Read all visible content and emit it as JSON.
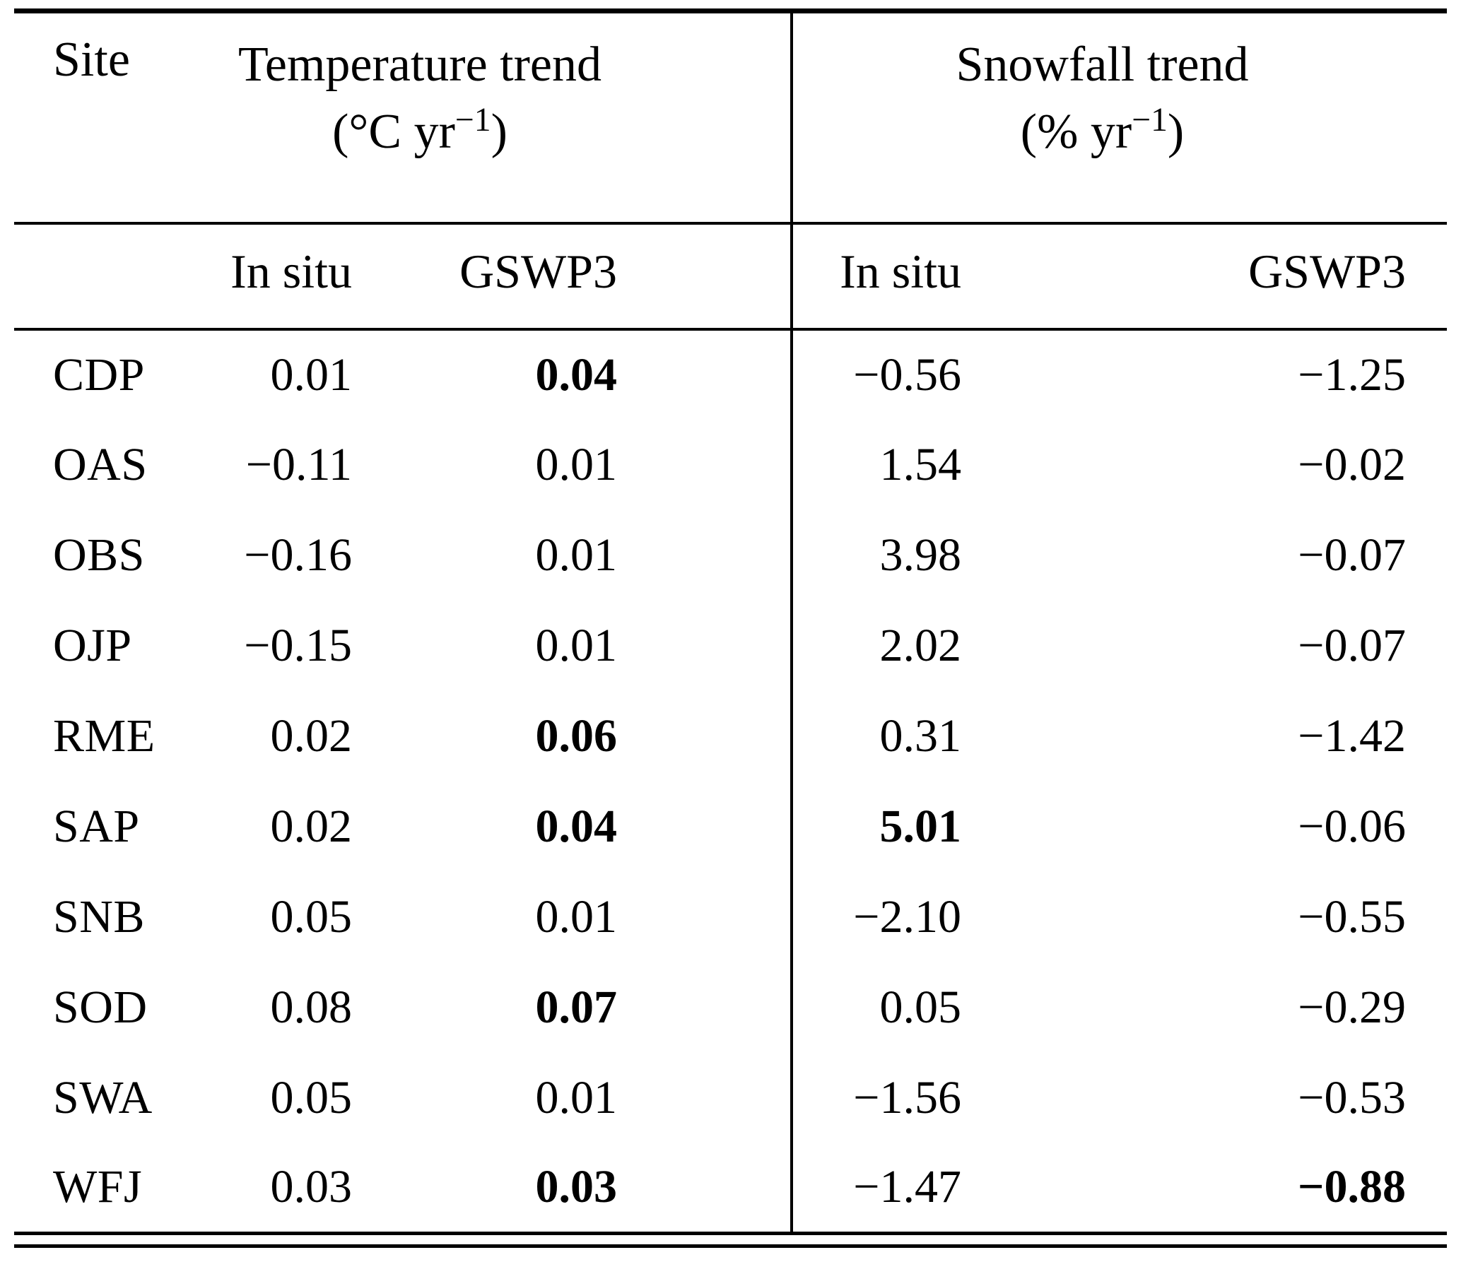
{
  "table": {
    "header": {
      "site": "Site",
      "temp_title": "Temperature trend",
      "temp_unit_prefix": "(°C yr",
      "temp_unit_sup": "−1",
      "temp_unit_suffix": ")",
      "snow_title": "Snowfall trend",
      "snow_unit_prefix": "(% yr",
      "snow_unit_sup": "−1",
      "snow_unit_suffix": ")",
      "sub_t_insitu": "In situ",
      "sub_t_gswp3": "GSWP3",
      "sub_s_insitu": "In situ",
      "sub_s_gswp3": "GSWP3"
    },
    "rows": [
      {
        "site": "CDP",
        "t_insitu": "0.01",
        "t_gswp3": "0.04",
        "s_insitu": "−0.56",
        "s_gswp3": "−1.25",
        "bold": {
          "t_gswp3": true
        }
      },
      {
        "site": "OAS",
        "t_insitu": "−0.11",
        "t_gswp3": "0.01",
        "s_insitu": "1.54",
        "s_gswp3": "−0.02",
        "bold": {}
      },
      {
        "site": "OBS",
        "t_insitu": "−0.16",
        "t_gswp3": "0.01",
        "s_insitu": "3.98",
        "s_gswp3": "−0.07",
        "bold": {}
      },
      {
        "site": "OJP",
        "t_insitu": "−0.15",
        "t_gswp3": "0.01",
        "s_insitu": "2.02",
        "s_gswp3": "−0.07",
        "bold": {}
      },
      {
        "site": "RME",
        "t_insitu": "0.02",
        "t_gswp3": "0.06",
        "s_insitu": "0.31",
        "s_gswp3": "−1.42",
        "bold": {
          "t_gswp3": true
        }
      },
      {
        "site": "SAP",
        "t_insitu": "0.02",
        "t_gswp3": "0.04",
        "s_insitu": "5.01",
        "s_gswp3": "−0.06",
        "bold": {
          "t_gswp3": true,
          "s_insitu": true
        }
      },
      {
        "site": "SNB",
        "t_insitu": "0.05",
        "t_gswp3": "0.01",
        "s_insitu": "−2.10",
        "s_gswp3": "−0.55",
        "bold": {}
      },
      {
        "site": "SOD",
        "t_insitu": "0.08",
        "t_gswp3": "0.07",
        "s_insitu": "0.05",
        "s_gswp3": "−0.29",
        "bold": {
          "t_gswp3": true
        }
      },
      {
        "site": "SWA",
        "t_insitu": "0.05",
        "t_gswp3": "0.01",
        "s_insitu": "−1.56",
        "s_gswp3": "−0.53",
        "bold": {}
      },
      {
        "site": "WFJ",
        "t_insitu": "0.03",
        "t_gswp3": "0.03",
        "s_insitu": "−1.47",
        "s_gswp3": "−0.88",
        "bold": {
          "t_gswp3": true,
          "s_gswp3": true
        }
      }
    ]
  },
  "colors": {
    "text": "#000000",
    "rule": "#000000",
    "background": "#ffffff"
  }
}
